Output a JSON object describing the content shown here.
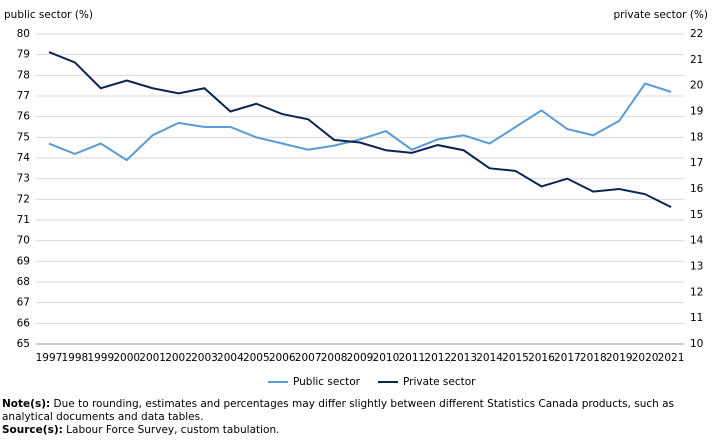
{
  "chart_data": {
    "type": "line",
    "y_label": "public sector (%)",
    "y2_label": "private sector (%)",
    "categories": [
      "1997",
      "1998",
      "1999",
      "2000",
      "2001",
      "2002",
      "2003",
      "2004",
      "2005",
      "2006",
      "2007",
      "2008",
      "2009",
      "2010",
      "2011",
      "2012",
      "2013",
      "2014",
      "2015",
      "2016",
      "2017",
      "2018",
      "2019",
      "2020",
      "2021"
    ],
    "series": [
      {
        "name": "Public sector",
        "color": "#5b9bd5",
        "values": [
          74.7,
          74.2,
          74.7,
          73.9,
          75.1,
          75.7,
          75.5,
          75.5,
          75.0,
          74.7,
          74.4,
          74.6,
          74.9,
          75.3,
          74.4,
          74.9,
          75.1,
          74.7,
          75.5,
          76.3,
          75.4,
          75.1,
          75.8,
          77.6,
          77.2
        ]
      },
      {
        "name": "Private sector",
        "color": "#0c2550",
        "axis": "y2",
        "values": [
          21.3,
          20.9,
          19.9,
          20.2,
          19.9,
          19.7,
          19.9,
          19.0,
          19.3,
          18.9,
          18.7,
          17.9,
          17.8,
          17.5,
          17.4,
          17.7,
          17.5,
          16.8,
          16.7,
          16.1,
          16.4,
          15.9,
          16.0,
          15.8,
          15.3
        ]
      }
    ],
    "ylim": [
      65,
      80
    ],
    "yticks": [
      65,
      66,
      67,
      68,
      69,
      70,
      71,
      72,
      73,
      74,
      75,
      76,
      77,
      78,
      79,
      80
    ],
    "y2lim": [
      10,
      22
    ],
    "y2ticks": [
      10,
      11,
      12,
      13,
      14,
      15,
      16,
      17,
      18,
      19,
      20,
      21,
      22
    ],
    "grid": true,
    "legend": "bottom"
  },
  "footnotes": {
    "note_label": "Note(s):",
    "note_text": "Due to rounding, estimates and percentages may differ slightly between different Statistics Canada products, such as analytical documents and data tables.",
    "source_label": "Source(s):",
    "source_text": "Labour Force Survey, custom tabulation."
  }
}
